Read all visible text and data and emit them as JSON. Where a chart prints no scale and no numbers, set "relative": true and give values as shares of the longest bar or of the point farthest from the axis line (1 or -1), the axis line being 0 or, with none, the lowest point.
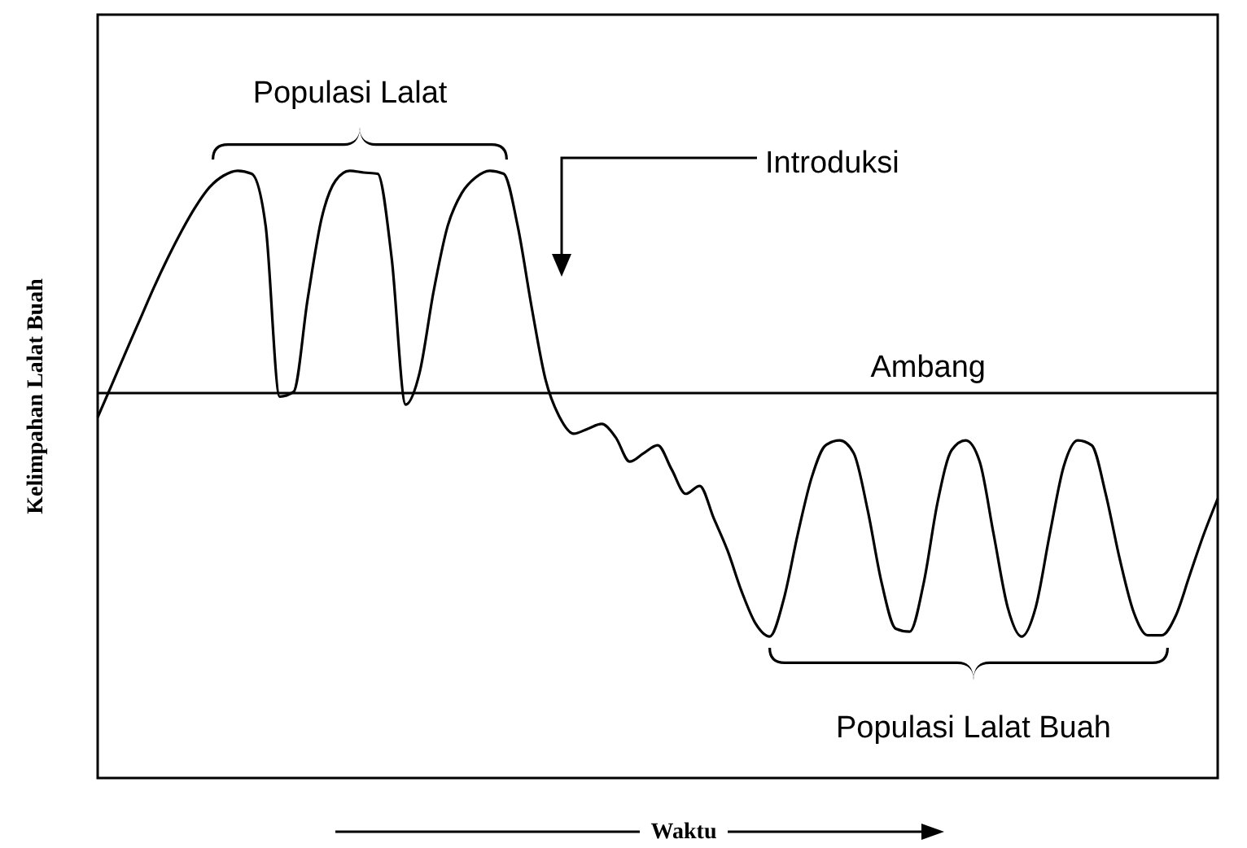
{
  "chart_data": {
    "type": "line",
    "relative": true,
    "xlabel": "Waktu",
    "ylabel": "Kelimpahan Lalat Buah",
    "categories": [
      null,
      null,
      null,
      null,
      null,
      null,
      null,
      null,
      null,
      null,
      null,
      null,
      null,
      null,
      null,
      null,
      null,
      null,
      null,
      null,
      null,
      null,
      null,
      null,
      null,
      null,
      null,
      null,
      null,
      null,
      null,
      null,
      null,
      null,
      null,
      null,
      null,
      null,
      null,
      null,
      null,
      null,
      null,
      null,
      null,
      null,
      null,
      null,
      null,
      null,
      null,
      null,
      null,
      null,
      null,
      null,
      null,
      null,
      null,
      null,
      null,
      null,
      null,
      null,
      null,
      null,
      null,
      null,
      null,
      null,
      null,
      null,
      null,
      null,
      null,
      null,
      null,
      null,
      null,
      null,
      null
    ],
    "series": [
      {
        "color": "#000000",
        "values": [
          0.594,
          0.647,
          0.701,
          0.754,
          0.807,
          0.856,
          0.901,
          0.941,
          0.973,
          0.992,
          1,
          0.995,
          0.909,
          0.628,
          0.636,
          0.789,
          0.922,
          0.984,
          1,
          0.997,
          0.995,
          0.856,
          0.615,
          0.668,
          0.802,
          0.909,
          0.963,
          0.989,
          1,
          0.995,
          0.909,
          0.775,
          0.655,
          0.594,
          0.567,
          0.575,
          0.583,
          0.561,
          0.521,
          0.535,
          0.548,
          0.508,
          0.468,
          0.481,
          0.428,
          0.374,
          0.307,
          0.254,
          0.233,
          0.294,
          0.401,
          0.495,
          0.548,
          0.556,
          0.535,
          0.441,
          0.321,
          0.246,
          0.241,
          0.321,
          0.455,
          0.54,
          0.556,
          0.521,
          0.401,
          0.281,
          0.233,
          0.281,
          0.401,
          0.513,
          0.556,
          0.548,
          0.468,
          0.361,
          0.273,
          0.235,
          0.235,
          0.267,
          0.334,
          0.401,
          0.46
        ]
      }
    ],
    "marker": "none",
    "line_style": "solid",
    "ref_lines": [
      {
        "axis": "y",
        "value": 0.634,
        "label": "Ambang",
        "color": "#000000"
      }
    ],
    "annotations": [
      "Populasi Lalat",
      "Introduksi",
      "Populasi Lalat Buah"
    ]
  }
}
